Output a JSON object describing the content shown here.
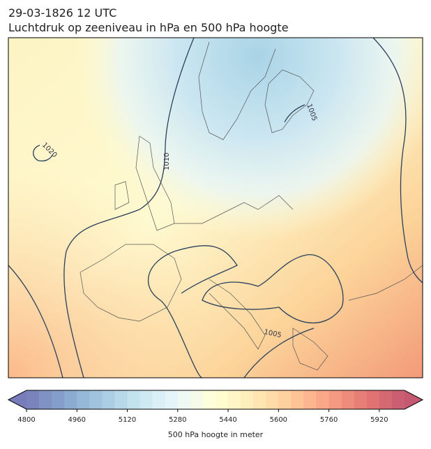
{
  "header": {
    "date": "29-03-1826 12 UTC",
    "title": "Luchtdruk op zeeniveau in hPa en 500 hPa hoogte"
  },
  "map": {
    "contour_labels": [
      "1020",
      "1010",
      "1005",
      "1005"
    ]
  },
  "colorbar": {
    "lim": [
      4800,
      6000
    ],
    "step": 40,
    "ticks": [
      4800,
      4960,
      5120,
      5280,
      5440,
      5600,
      5760,
      5920
    ],
    "label": "500 hPa hoogte in meter"
  }
}
